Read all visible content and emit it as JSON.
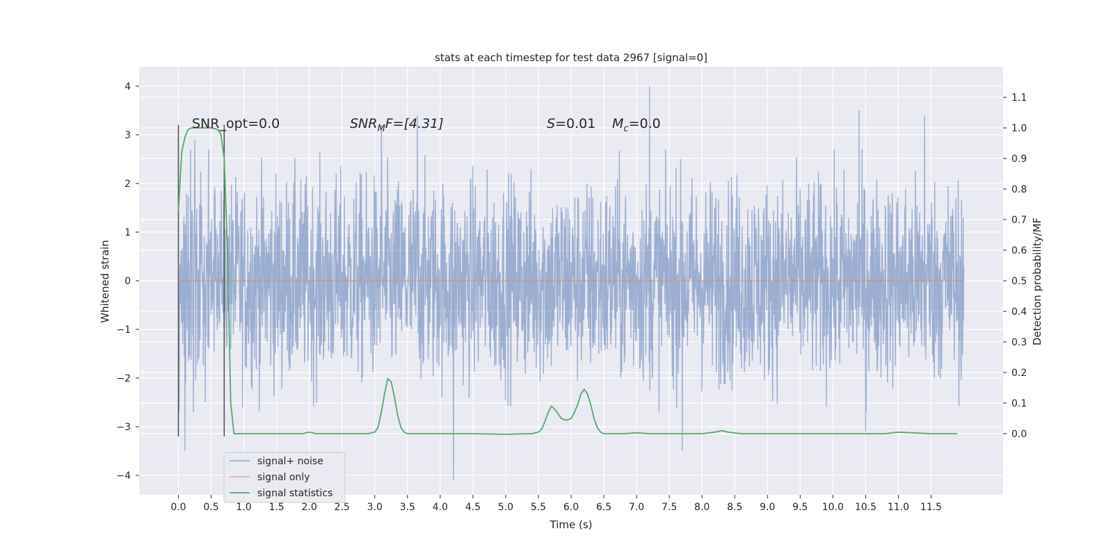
{
  "chart_data": {
    "type": "line",
    "title": "stats at each timestep for test data 2967 [signal=0]",
    "xlabel": "Time (s)",
    "ylabel_left": "Whitened strain",
    "ylabel_right": "Detection probability/MF",
    "xlim": [
      -0.6,
      12.6
    ],
    "ylim_left": [
      -4.4,
      4.4
    ],
    "ylim_right": [
      -0.2,
      1.2
    ],
    "x_ticks": [
      "0.0",
      "0.5",
      "1.0",
      "1.5",
      "2.0",
      "2.5",
      "3.0",
      "3.5",
      "4.0",
      "4.5",
      "5.0",
      "5.5",
      "6.0",
      "6.5",
      "7.0",
      "7.5",
      "8.0",
      "8.5",
      "9.0",
      "9.5",
      "10.0",
      "10.5",
      "11.0",
      "11.5"
    ],
    "y_ticks_left": [
      "4",
      "3",
      "2",
      "1",
      "0",
      "−1",
      "−2",
      "−3",
      "−4"
    ],
    "y_ticks_right": [
      "1.1",
      "1.0",
      "0.9",
      "0.8",
      "0.7",
      "0.6",
      "0.5",
      "0.4",
      "0.3",
      "0.2",
      "0.1",
      "0.0"
    ],
    "grid": true,
    "legend_position": "lower-left",
    "colors": {
      "noise": "#4c72b0",
      "signal_only": "#dd8452",
      "statistics": "#55a868",
      "axes_bg": "#eaeaf2",
      "grid": "#ffffff",
      "text": "#262626",
      "marker": "#555555"
    },
    "annotations": {
      "snr_opt": "SNR_opt=0.0",
      "snr_mf_base": "SNR",
      "snr_mf_sub": "M",
      "snr_mf_rest": "F=[4.31]",
      "s_sym": "S",
      "s_val": "=0.01",
      "mc_sym": "M",
      "mc_sub": "c",
      "mc_val": "=0.0"
    },
    "vertical_markers_x": [
      0.0,
      0.7
    ],
    "series": [
      {
        "name": "signal+ noise",
        "noise_envelope": {
          "x_start": 0.0,
          "x_end": 12.0,
          "typical_amplitude": 1.9,
          "peaks": [
            [
              0.1,
              -3.5
            ],
            [
              0.25,
              2.9
            ],
            [
              3.1,
              3.2
            ],
            [
              3.65,
              3.4
            ],
            [
              4.2,
              -4.1
            ],
            [
              7.2,
              4.0
            ],
            [
              7.7,
              -3.5
            ],
            [
              10.4,
              3.5
            ],
            [
              11.4,
              3.4
            ],
            [
              10.5,
              -3.1
            ]
          ]
        }
      },
      {
        "name": "signal only",
        "values_x": [
          0.0,
          12.0
        ],
        "values_y": [
          0.0,
          0.0
        ]
      },
      {
        "name": "signal statistics",
        "x": [
          0.0,
          0.05,
          0.1,
          0.15,
          0.2,
          0.3,
          0.4,
          0.5,
          0.6,
          0.65,
          0.7,
          0.75,
          0.8,
          0.85,
          0.9,
          1.0,
          1.5,
          1.9,
          2.0,
          2.1,
          2.2,
          2.5,
          2.9,
          3.0,
          3.05,
          3.1,
          3.15,
          3.2,
          3.25,
          3.3,
          3.35,
          3.4,
          3.45,
          3.5,
          3.6,
          3.8,
          4.5,
          5.0,
          5.4,
          5.5,
          5.55,
          5.6,
          5.65,
          5.7,
          5.75,
          5.8,
          5.85,
          5.9,
          5.95,
          6.0,
          6.05,
          6.1,
          6.15,
          6.2,
          6.25,
          6.3,
          6.35,
          6.4,
          6.45,
          6.5,
          6.6,
          6.8,
          7.0,
          7.2,
          7.5,
          8.0,
          8.2,
          8.3,
          8.4,
          8.6,
          9.0,
          10.0,
          10.8,
          11.0,
          11.2,
          11.5,
          11.9
        ],
        "y": [
          0.73,
          0.92,
          0.97,
          0.995,
          1.0,
          1.0,
          1.0,
          1.0,
          0.995,
          0.98,
          0.9,
          0.6,
          0.1,
          0.0,
          0.0,
          0.0,
          0.0,
          0.0,
          0.005,
          0.0,
          0.0,
          0.0,
          0.0,
          0.005,
          0.02,
          0.07,
          0.13,
          0.18,
          0.17,
          0.12,
          0.06,
          0.02,
          0.005,
          0.0,
          0.0,
          0.0,
          0.0,
          -0.002,
          0.0,
          0.005,
          0.015,
          0.04,
          0.07,
          0.09,
          0.08,
          0.065,
          0.05,
          0.045,
          0.045,
          0.05,
          0.07,
          0.095,
          0.13,
          0.145,
          0.13,
          0.095,
          0.05,
          0.02,
          0.005,
          0.0,
          0.0,
          0.0,
          0.003,
          0.0,
          0.0,
          0.0,
          0.005,
          0.01,
          0.005,
          0.0,
          0.0,
          0.0,
          0.0,
          0.005,
          0.003,
          0.0,
          0.0
        ]
      }
    ]
  }
}
